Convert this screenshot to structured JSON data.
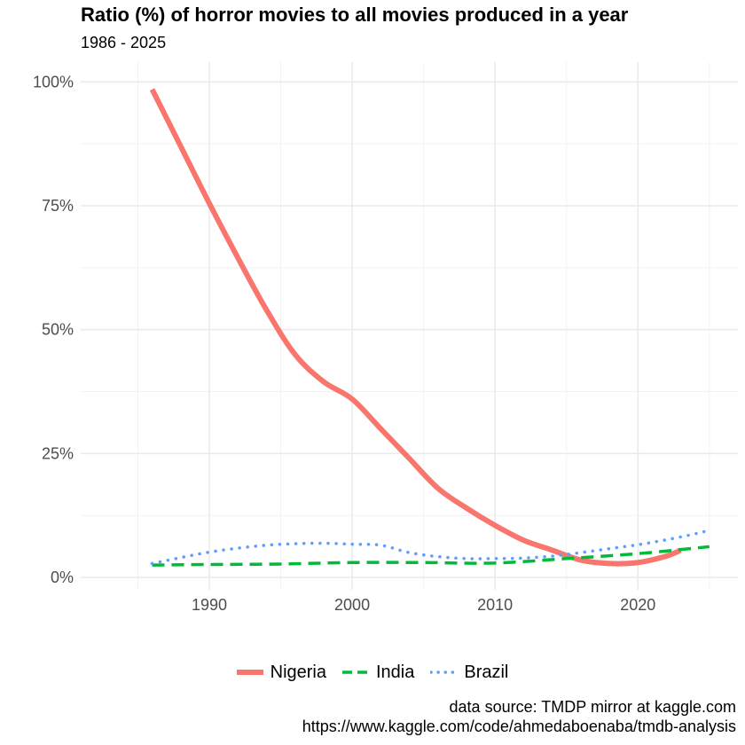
{
  "chart_data": {
    "type": "line",
    "title": "Ratio (%) of horror movies to all movies produced in a year",
    "subtitle": "1986 - 2025",
    "xlabel": "",
    "ylabel": "",
    "xlim": [
      1981,
      2027
    ],
    "ylim": [
      -2.5,
      104
    ],
    "x_ticks": [
      1990,
      2000,
      2010,
      2020
    ],
    "x_tick_labels": [
      "1990",
      "2000",
      "2010",
      "2020"
    ],
    "y_ticks": [
      0,
      25,
      50,
      75,
      100
    ],
    "y_tick_labels": [
      "0%",
      "25%",
      "50%",
      "75%",
      "100%"
    ],
    "grid": true,
    "legend_position": "bottom",
    "series": [
      {
        "name": "Nigeria",
        "color": "#F8766D",
        "style": "solid",
        "x": [
          1986,
          1988,
          1990,
          1992,
          1994,
          1996,
          1998,
          2000,
          2002,
          2004,
          2006,
          2008,
          2010,
          2012,
          2014,
          2016,
          2018,
          2020,
          2022,
          2023
        ],
        "y": [
          98.5,
          87,
          75.5,
          64.5,
          54,
          45,
          39.5,
          36,
          30,
          24,
          18,
          14,
          10.5,
          7.5,
          5.5,
          3.5,
          2.8,
          3.0,
          4.3,
          5.5
        ]
      },
      {
        "name": "India",
        "color": "#00BA38",
        "style": "dashed",
        "x": [
          1986,
          1990,
          1995,
          2000,
          2005,
          2010,
          2015,
          2020,
          2025
        ],
        "y": [
          2.5,
          2.6,
          2.7,
          3.0,
          3.0,
          2.9,
          3.8,
          4.8,
          6.2
        ]
      },
      {
        "name": "Brazil",
        "color": "#619CFF",
        "style": "dotted",
        "x": [
          1986,
          1988,
          1990,
          1992,
          1994,
          1996,
          1998,
          2000,
          2002,
          2004,
          2006,
          2008,
          2010,
          2012,
          2014,
          2016,
          2018,
          2020,
          2022,
          2024,
          2025
        ],
        "y": [
          2.8,
          4,
          5.1,
          5.9,
          6.5,
          6.8,
          6.9,
          6.7,
          6.5,
          5,
          4.2,
          3.8,
          3.8,
          3.9,
          4.3,
          5.0,
          5.8,
          6.6,
          7.6,
          8.8,
          9.5
        ]
      }
    ]
  },
  "caption": {
    "line1": "data source: TMDP mirror at kaggle.com",
    "line2": "https://www.kaggle.com/code/ahmedaboenaba/tmdb-analysis"
  }
}
